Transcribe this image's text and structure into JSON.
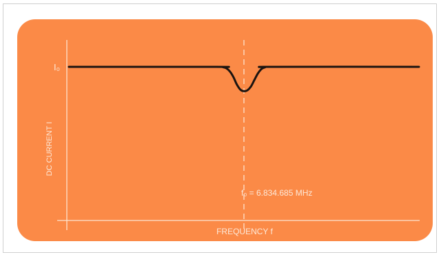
{
  "colors": {
    "panel": "#fb8a47",
    "axis": "#fde4cf",
    "curve": "#1c1410",
    "marker_line": "#fde4cf",
    "text": "#fde9d9"
  },
  "chart_data": {
    "type": "line",
    "title": "",
    "xlabel": "FREQUENCY  f",
    "ylabel": "DC CURRENT I",
    "y_reference_label": "I₀",
    "resonance_label": "f₀ = 6.834.685 MHz",
    "xlim": [
      0,
      100
    ],
    "ylim": [
      0,
      100
    ],
    "grid": false,
    "series": [
      {
        "x": [
          0,
          42,
          44,
          45,
          46,
          47,
          48,
          49,
          50,
          51,
          52,
          53,
          54,
          55,
          56,
          58,
          100
        ],
        "values": [
          82,
          82,
          81.8,
          81.2,
          79.5,
          76.5,
          72.5,
          69.8,
          69,
          69.5,
          71.5,
          75,
          78.5,
          80.8,
          81.7,
          82,
          82
        ]
      }
    ],
    "marker": {
      "x": 50
    }
  }
}
